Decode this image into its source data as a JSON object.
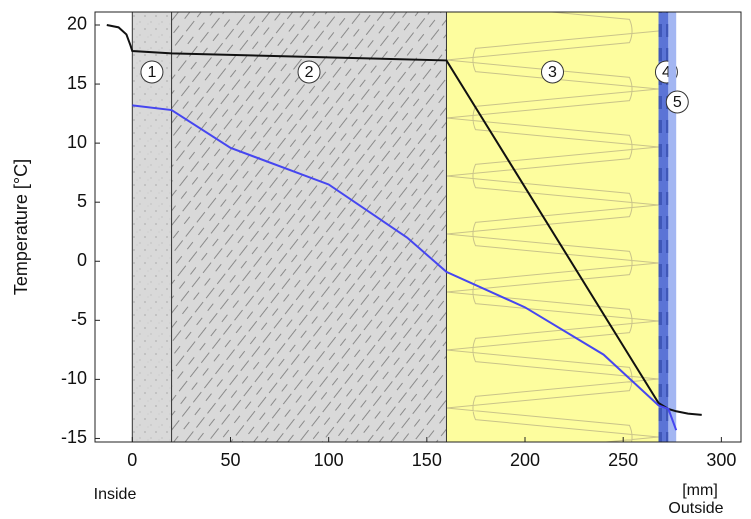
{
  "chart_data": {
    "type": "line",
    "ylabel": "Temperature  [°C]",
    "xlabel": "[mm]",
    "inside_label": "Inside",
    "outside_label": "Outside",
    "xlim": [
      -19,
      310
    ],
    "ylim": [
      -15.3,
      21.1
    ],
    "xticks": [
      0,
      50,
      100,
      150,
      200,
      250,
      300
    ],
    "yticks": [
      -15,
      -10,
      -5,
      0,
      5,
      10,
      15,
      20
    ],
    "grid": false,
    "layers": [
      {
        "label": "1",
        "start": 0,
        "end": 20,
        "color": "#d9d9d9",
        "pattern": "dots"
      },
      {
        "label": "2",
        "start": 20,
        "end": 160,
        "color": "#d9d9d9",
        "pattern": "hatch"
      },
      {
        "label": "3",
        "start": 160,
        "end": 268,
        "color": "#fdfd9e",
        "pattern": "insulation"
      },
      {
        "label": "4",
        "start": 268,
        "end": 273,
        "color": "#5b74d6",
        "pattern": "dashes"
      },
      {
        "label": "5",
        "start": 273,
        "end": 277,
        "color": "#a3b6f2",
        "pattern": "none"
      }
    ],
    "series": [
      {
        "color": "#111111",
        "x": [
          -13,
          -7,
          -3,
          -1,
          0,
          20,
          160,
          268,
          273,
          277,
          283,
          290
        ],
        "values": [
          20,
          19.8,
          19.2,
          18.3,
          17.8,
          17.6,
          17.0,
          -12.0,
          -12.5,
          -12.7,
          -12.9,
          -13.0
        ]
      },
      {
        "color": "#4646f0",
        "x": [
          0,
          20,
          50,
          100,
          140,
          160,
          200,
          240,
          268,
          273,
          277
        ],
        "values": [
          13.2,
          12.8,
          9.6,
          6.5,
          2.0,
          -0.9,
          -3.9,
          -7.9,
          -12.2,
          -12.5,
          -14.3
        ]
      }
    ]
  }
}
